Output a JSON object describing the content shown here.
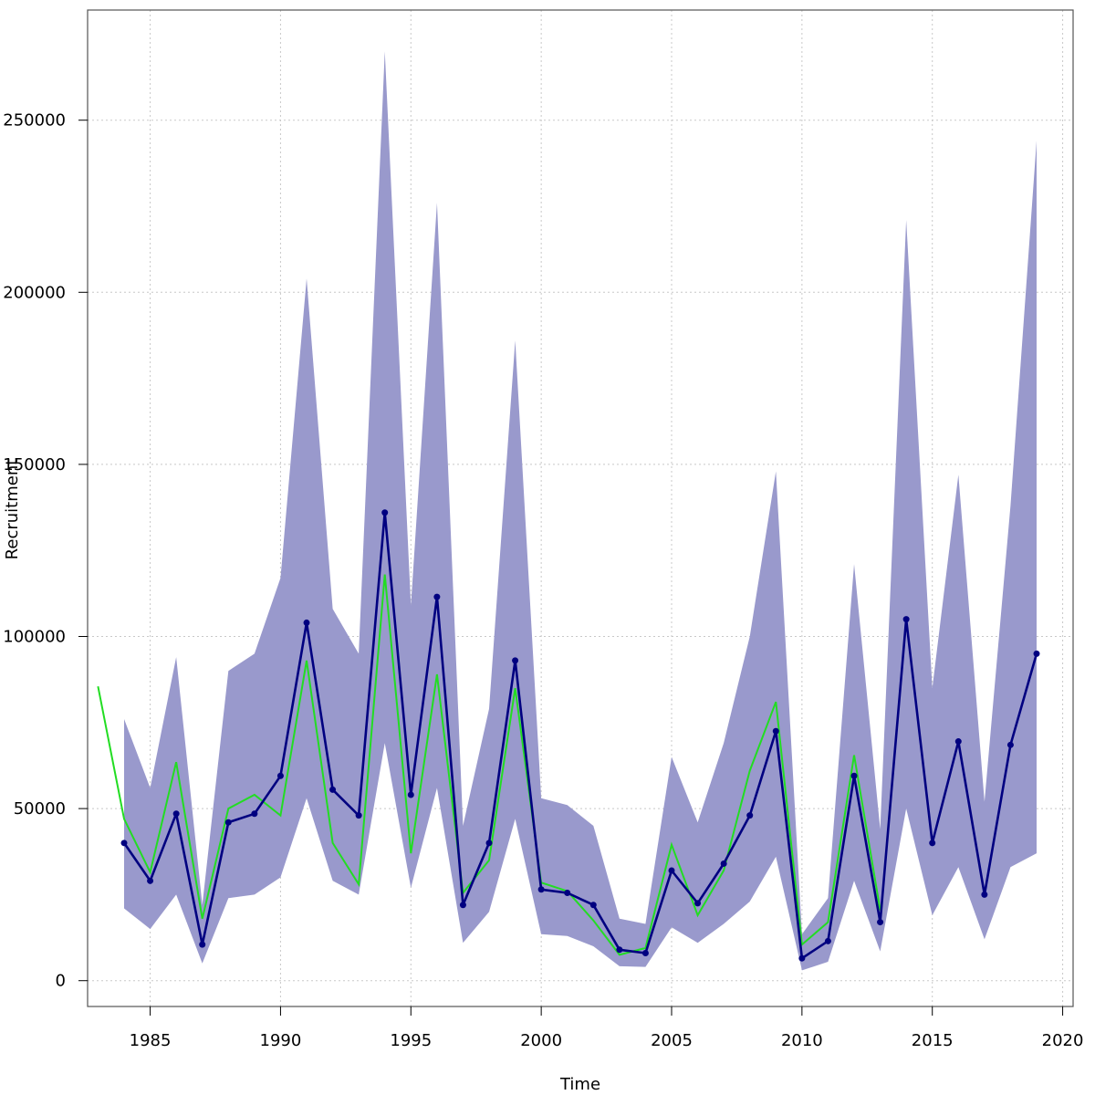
{
  "chart_data": {
    "type": "line",
    "xlabel": "Time",
    "ylabel": "Recruitment",
    "xlim": [
      1982.6,
      2020.4
    ],
    "ylim": [
      -7500,
      282000
    ],
    "x_ticks": [
      1985,
      1990,
      1995,
      2000,
      2005,
      2010,
      2015,
      2020
    ],
    "y_ticks": [
      0,
      50000,
      100000,
      150000,
      200000,
      250000
    ],
    "y_tick_labels": [
      "0",
      "50000",
      "100000",
      "150000",
      "200000",
      "250000"
    ],
    "grid": true,
    "colors": {
      "band": "#9999cc",
      "estimate": "#000080",
      "observed": "#22dd22",
      "grid": "#c8c8c8"
    },
    "band": {
      "x": [
        1984,
        1985,
        1986,
        1987,
        1988,
        1989,
        1990,
        1991,
        1992,
        1993,
        1994,
        1995,
        1996,
        1997,
        1998,
        1999,
        2000,
        2001,
        2002,
        2003,
        2004,
        2005,
        2006,
        2007,
        2008,
        2009,
        2010,
        2011,
        2012,
        2013,
        2014,
        2015,
        2016,
        2017,
        2018,
        2019
      ],
      "lower": [
        21000,
        15000,
        25000,
        5000,
        24000,
        25000,
        30000,
        53000,
        29000,
        25000,
        69000,
        27000,
        56000,
        11000,
        20000,
        47000,
        13500,
        13000,
        10000,
        4200,
        4000,
        15500,
        11000,
        16500,
        23000,
        36000,
        3000,
        5500,
        29000,
        8500,
        50000,
        19000,
        33000,
        12000,
        33000,
        37000
      ],
      "upper": [
        76000,
        56000,
        94000,
        22000,
        90000,
        95000,
        117000,
        204000,
        108000,
        95000,
        270000,
        109000,
        226000,
        45000,
        79000,
        186000,
        53000,
        51000,
        45000,
        18000,
        16500,
        65000,
        46000,
        69000,
        100000,
        148000,
        13500,
        24000,
        121000,
        44000,
        221000,
        85000,
        147000,
        52000,
        138000,
        244000
      ]
    },
    "series": [
      {
        "x": [
          1984,
          1985,
          1986,
          1987,
          1988,
          1989,
          1990,
          1991,
          1992,
          1993,
          1994,
          1995,
          1996,
          1997,
          1998,
          1999,
          2000,
          2001,
          2002,
          2003,
          2004,
          2005,
          2006,
          2007,
          2008,
          2009,
          2010,
          2011,
          2012,
          2013,
          2014,
          2015,
          2016,
          2017,
          2018,
          2019
        ],
        "values": [
          40000,
          29000,
          48500,
          10500,
          46000,
          48500,
          59500,
          104000,
          55500,
          48000,
          136000,
          54000,
          111500,
          22000,
          40000,
          93000,
          26500,
          25500,
          22000,
          9000,
          8000,
          32000,
          22500,
          34000,
          48000,
          72500,
          6500,
          11500,
          59500,
          17000,
          105000,
          40000,
          69500,
          25000,
          68500,
          95000
        ],
        "markers": true
      },
      {
        "x": [
          1983,
          1984,
          1985,
          1986,
          1987,
          1988,
          1989,
          1990,
          1991,
          1992,
          1993,
          1994,
          1995,
          1996,
          1997,
          1998,
          1999,
          2000,
          2001,
          2002,
          2003,
          2004,
          2005,
          2006,
          2007,
          2008,
          2009,
          2010,
          2011,
          2012,
          2013
        ],
        "values": [
          85500,
          47000,
          31500,
          63500,
          18000,
          50000,
          54000,
          48000,
          93000,
          40000,
          28000,
          118000,
          37000,
          89000,
          25500,
          35000,
          85000,
          28500,
          26000,
          17500,
          7500,
          9500,
          39500,
          19000,
          32000,
          61000,
          81000,
          10500,
          17000,
          65500,
          20500
        ],
        "markers": false
      }
    ]
  }
}
